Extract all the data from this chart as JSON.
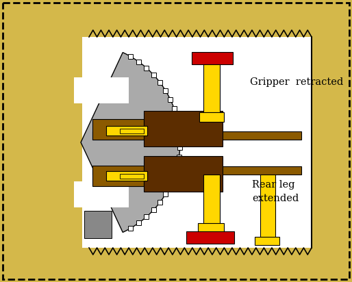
{
  "bg_color": "#D4B84A",
  "tunnel_bg": "#FFFFFF",
  "dark_brown": "#5C2D00",
  "medium_brown": "#8B5A00",
  "yellow": "#FFD700",
  "red": "#CC0000",
  "gray": "#AAAAAA",
  "dark_gray": "#888888",
  "text_color": "#000000",
  "label1": "Gripper  retracted",
  "label2": "Rear leg\nextended"
}
